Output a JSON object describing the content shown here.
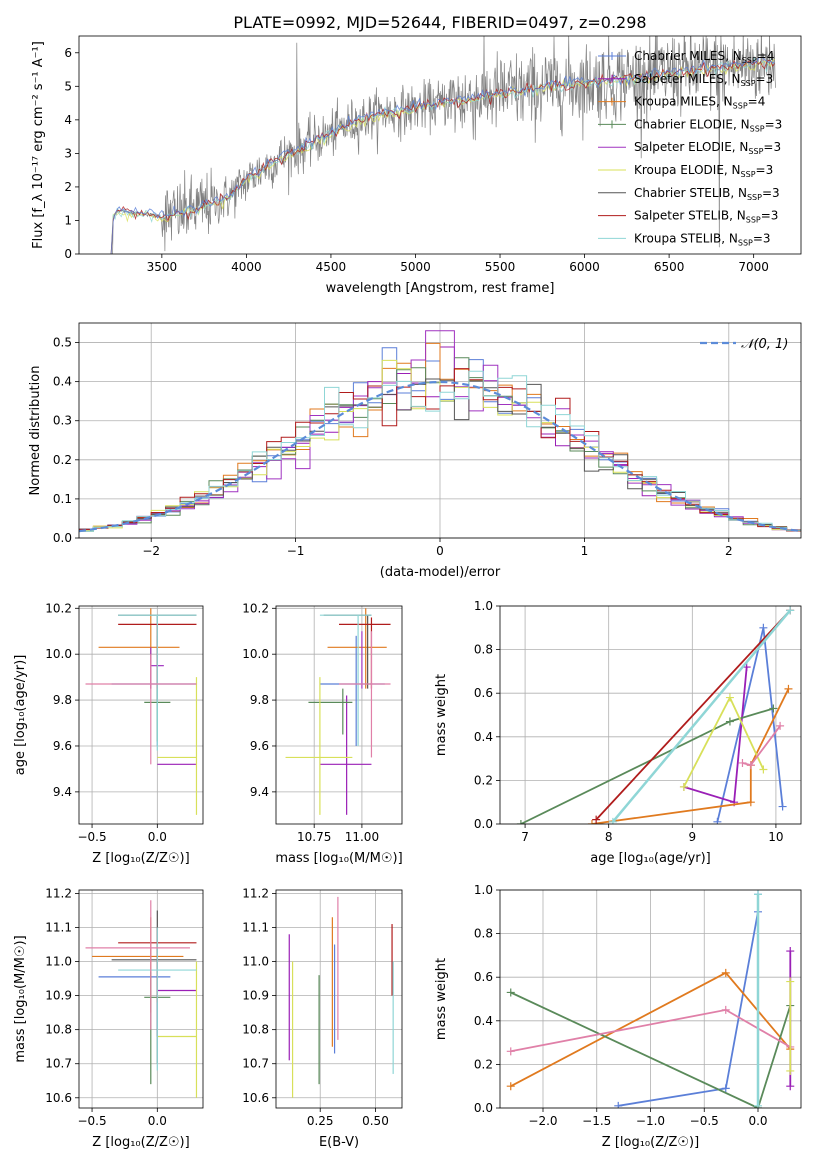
{
  "figure_title": "PLATE=0992, MJD=52644, FIBERID=0497, z=0.298",
  "colors": {
    "chabrier_miles": "#5b7fd8",
    "salpeter_miles": "#9a1fb6",
    "kroupa_miles": "#e07a1f",
    "chabrier_elodie": "#5a8a5a",
    "salpeter_elodie": "#a033c0",
    "kroupa_elodie": "#d8e05a",
    "chabrier_stelib": "#555555",
    "salpeter_stelib": "#b01c1c",
    "kroupa_stelib": "#8fd6d6",
    "data": "#808080",
    "gaussian": "#5b8bd8"
  },
  "chart_data": [
    {
      "id": "spectrum",
      "type": "line",
      "xlabel": "wavelength [Angstrom, rest frame]",
      "ylabel": "Flux [f_λ 10⁻¹⁷ erg cm⁻² s⁻¹ A⁻¹]",
      "xlim": [
        3010,
        7280
      ],
      "ylim": [
        0,
        6.5
      ],
      "xticks": [
        3500,
        4000,
        4500,
        5000,
        5500,
        6000,
        6500,
        7000
      ],
      "yticks": [
        0,
        1,
        2,
        3,
        4,
        5,
        6
      ],
      "grid": false,
      "legend": "top-right",
      "legend_entries": [
        {
          "label": "Chabrier MILES, N_SSP=4",
          "color_key": "chabrier_miles"
        },
        {
          "label": "Salpeter MILES, N_SSP=3",
          "color_key": "salpeter_miles"
        },
        {
          "label": "Kroupa MILES, N_SSP=4",
          "color_key": "kroupa_miles"
        },
        {
          "label": "Chabrier ELODIE, N_SSP=3",
          "color_key": "chabrier_elodie"
        },
        {
          "label": "Salpeter ELODIE, N_SSP=3",
          "color_key": "salpeter_elodie"
        },
        {
          "label": "Kroupa ELODIE, N_SSP=3",
          "color_key": "kroupa_elodie"
        },
        {
          "label": "Chabrier STELIB, N_SSP=3",
          "color_key": "chabrier_stelib"
        },
        {
          "label": "Salpeter STELIB, N_SSP=3",
          "color_key": "salpeter_stelib"
        },
        {
          "label": "Kroupa STELIB, N_SSP=3",
          "color_key": "kroupa_stelib"
        }
      ],
      "continuum": {
        "x": [
          3200,
          3210,
          3240,
          3300,
          3400,
          3500,
          3600,
          3700,
          3800,
          3900,
          4000,
          4100,
          4200,
          4300,
          4400,
          4500,
          4600,
          4700,
          4800,
          4900,
          5000,
          5100,
          5200,
          5300,
          5400,
          5500,
          5600,
          5700,
          5800,
          5900,
          6000,
          6100,
          6200,
          6300,
          6400,
          6500,
          6600,
          6700,
          6800,
          6900,
          7000,
          7100
        ],
        "y": [
          0,
          1.1,
          1.3,
          1.25,
          1.2,
          1.1,
          1.2,
          1.35,
          1.5,
          1.7,
          2.2,
          2.55,
          2.85,
          3.1,
          3.35,
          3.6,
          3.85,
          4.05,
          4.2,
          4.25,
          4.35,
          4.45,
          4.55,
          4.6,
          4.7,
          4.8,
          4.85,
          4.9,
          5.0,
          5.05,
          5.1,
          5.15,
          5.2,
          5.25,
          5.3,
          5.4,
          5.45,
          5.5,
          5.55,
          5.6,
          5.65,
          5.7
        ]
      }
    },
    {
      "id": "residuals",
      "type": "step",
      "xlabel": "(data-model)/error",
      "ylabel": "Normed distribution",
      "xlim": [
        -2.5,
        2.5
      ],
      "ylim": [
        0,
        0.55
      ],
      "xticks": [
        -2,
        -1,
        0,
        1,
        2
      ],
      "xticklabels": [
        "−2",
        "−1",
        "0",
        "1",
        "2"
      ],
      "yticks": [
        0.0,
        0.1,
        0.2,
        0.3,
        0.4,
        0.5
      ],
      "grid": true,
      "legend": "top-right",
      "legend_label": "𝒩(0, 1)",
      "bin_width": 0.1
    },
    {
      "id": "age_vs_Z",
      "type": "errorbar",
      "xlabel": "Z [log₁₀(Z/Z☉)]",
      "ylabel": "age  [log₁₀(age/yr)]",
      "xlim": [
        -0.6,
        0.35
      ],
      "ylim": [
        9.26,
        10.21
      ],
      "xticks": [
        -0.5,
        0.0
      ],
      "xticklabels": [
        "−0.5",
        "0.0"
      ],
      "yticks": [
        9.4,
        9.6,
        9.8,
        10.0,
        10.2
      ],
      "grid": true,
      "points": [
        {
          "c": "chabrier_miles",
          "x": 0.0,
          "xl": -0.35,
          "xh": 0.3,
          "y": 9.87,
          "yl": 9.6,
          "yh": 10.08
        },
        {
          "c": "salpeter_miles",
          "x": 0.0,
          "xl": 0.0,
          "xh": 0.3,
          "y": 9.52,
          "yl": 9.52,
          "yh": 9.52
        },
        {
          "c": "kroupa_miles",
          "x": -0.05,
          "xl": -0.45,
          "xh": 0.17,
          "y": 10.03,
          "yl": 9.85,
          "yh": 10.2
        },
        {
          "c": "chabrier_elodie",
          "x": 0.0,
          "xl": -0.1,
          "xh": 0.1,
          "y": 9.79,
          "yl": 9.62,
          "yh": 9.85
        },
        {
          "c": "salpeter_elodie",
          "x": -0.05,
          "xl": -0.05,
          "xh": 0.05,
          "y": 9.95,
          "yl": 9.85,
          "yh": 10.03
        },
        {
          "c": "kroupa_elodie",
          "x": 0.3,
          "xl": 0.0,
          "xh": 0.3,
          "y": 9.55,
          "yl": 9.3,
          "yh": 9.9
        },
        {
          "c": "chabrier_stelib",
          "x": 0.0,
          "xl": -0.3,
          "xh": 0.3,
          "y": 10.17,
          "yl": 9.8,
          "yh": 10.17
        },
        {
          "c": "salpeter_stelib",
          "x": 0.0,
          "xl": -0.3,
          "xh": 0.3,
          "y": 10.13,
          "yl": 9.85,
          "yh": 10.13
        },
        {
          "c": "kroupa_stelib",
          "x": 0.0,
          "xl": -0.3,
          "xh": 0.3,
          "y": 10.17,
          "yl": 9.58,
          "yh": 10.17
        },
        {
          "c": "pink",
          "x": -0.05,
          "xl": -0.55,
          "xh": 0.3,
          "y": 9.87,
          "yl": 9.52,
          "yh": 10.0
        }
      ]
    },
    {
      "id": "age_vs_mass",
      "type": "errorbar",
      "xlabel": "mass [log₁₀(M/M☉)]",
      "ylabel": "",
      "xlim": [
        10.55,
        11.21
      ],
      "ylim": [
        9.26,
        10.21
      ],
      "xticks": [
        10.75,
        11.0
      ],
      "xticklabels": [
        "10.75",
        "11.00"
      ],
      "yticks": [
        9.4,
        9.6,
        9.8,
        10.0,
        10.2
      ],
      "grid": true,
      "points": [
        {
          "c": "chabrier_miles",
          "x": 10.97,
          "xl": 10.78,
          "xh": 11.12,
          "y": 9.87,
          "yl": 9.6,
          "yh": 10.08
        },
        {
          "c": "salpeter_miles",
          "x": 10.92,
          "xl": 10.78,
          "xh": 11.05,
          "y": 9.52,
          "yl": 9.3,
          "yh": 9.82
        },
        {
          "c": "kroupa_miles",
          "x": 11.02,
          "xl": 10.82,
          "xh": 11.13,
          "y": 10.03,
          "yl": 9.85,
          "yh": 10.2
        },
        {
          "c": "chabrier_elodie",
          "x": 10.9,
          "xl": 10.72,
          "xh": 10.95,
          "y": 9.79,
          "yl": 9.65,
          "yh": 9.85
        },
        {
          "c": "salpeter_elodie",
          "x": 11.0,
          "xl": 11.0,
          "xh": 11.0,
          "y": 9.95,
          "yl": 9.85,
          "yh": 10.1
        },
        {
          "c": "kroupa_elodie",
          "x": 10.78,
          "xl": 10.6,
          "xh": 10.95,
          "y": 9.55,
          "yl": 9.3,
          "yh": 9.9
        },
        {
          "c": "chabrier_stelib",
          "x": 11.03,
          "xl": 10.8,
          "xh": 11.05,
          "y": 10.17,
          "yl": 9.85,
          "yh": 10.17
        },
        {
          "c": "salpeter_stelib",
          "x": 11.05,
          "xl": 10.88,
          "xh": 11.15,
          "y": 10.13,
          "yl": 9.85,
          "yh": 10.16
        },
        {
          "c": "kroupa_stelib",
          "x": 10.98,
          "xl": 10.78,
          "xh": 11.05,
          "y": 10.17,
          "yl": 9.6,
          "yh": 10.17
        },
        {
          "c": "pink",
          "x": 11.05,
          "xl": 10.88,
          "xh": 11.15,
          "y": 9.87,
          "yl": 9.55,
          "yh": 10.1
        }
      ]
    },
    {
      "id": "mass_weight_vs_age",
      "type": "line",
      "xlabel": "age  [log₁₀(age/yr)]",
      "ylabel": "mass weight",
      "xlim": [
        6.7,
        10.3
      ],
      "ylim": [
        0,
        1.0
      ],
      "xticks": [
        7,
        8,
        9,
        10
      ],
      "yticks": [
        0.0,
        0.2,
        0.4,
        0.6,
        0.8,
        1.0
      ],
      "grid": true,
      "series": [
        {
          "c": "chabrier_miles",
          "x": [
            9.3,
            9.85,
            10.08
          ],
          "y": [
            0.01,
            0.9,
            0.08
          ]
        },
        {
          "c": "salpeter_miles",
          "x": [
            8.9,
            9.5,
            9.65
          ],
          "y": [
            0.17,
            0.1,
            0.72
          ]
        },
        {
          "c": "kroupa_miles",
          "x": [
            7.8,
            9.7,
            9.7,
            10.15
          ],
          "y": [
            0.0,
            0.1,
            0.27,
            0.62
          ]
        },
        {
          "c": "chabrier_elodie",
          "x": [
            6.95,
            9.45,
            9.97
          ],
          "y": [
            0.0,
            0.47,
            0.53
          ]
        },
        {
          "c": "kroupa_elodie",
          "x": [
            8.9,
            9.45,
            9.85
          ],
          "y": [
            0.17,
            0.58,
            0.25
          ]
        },
        {
          "c": "pink",
          "x": [
            9.6,
            9.7,
            10.05
          ],
          "y": [
            0.28,
            0.27,
            0.45
          ]
        },
        {
          "c": "salpeter_stelib",
          "x": [
            7.85,
            10.17
          ],
          "y": [
            0.02,
            0.98
          ]
        },
        {
          "c": "kroupa_stelib",
          "x": [
            8.05,
            10.17
          ],
          "y": [
            0.01,
            0.98
          ]
        }
      ]
    },
    {
      "id": "mass_vs_Z",
      "type": "errorbar",
      "xlabel": "Z [log₁₀(Z/Z☉)]",
      "ylabel": "mass [log₁₀(M/M☉)]",
      "xlim": [
        -0.6,
        0.35
      ],
      "ylim": [
        10.57,
        11.21
      ],
      "xticks": [
        -0.5,
        0.0
      ],
      "xticklabels": [
        "−0.5",
        "0.0"
      ],
      "yticks": [
        10.6,
        10.7,
        10.8,
        10.9,
        11.0,
        11.1,
        11.2
      ],
      "grid": true,
      "points": [
        {
          "c": "chabrier_miles",
          "x": 0.0,
          "xl": -0.45,
          "xh": 0.1,
          "y": 10.955,
          "yl": 10.78,
          "yh": 11.1
        },
        {
          "c": "salpeter_miles",
          "x": 0.0,
          "xl": 0.0,
          "xh": 0.3,
          "y": 10.915,
          "yl": 10.78,
          "yh": 10.96
        },
        {
          "c": "kroupa_miles",
          "x": -0.05,
          "xl": -0.5,
          "xh": 0.2,
          "y": 11.015,
          "yl": 10.85,
          "yh": 11.13
        },
        {
          "c": "chabrier_elodie",
          "x": -0.05,
          "xl": -0.1,
          "xh": 0.1,
          "y": 10.895,
          "yl": 10.64,
          "yh": 10.97
        },
        {
          "c": "kroupa_elodie",
          "x": 0.3,
          "xl": 0.0,
          "xh": 0.3,
          "y": 10.78,
          "yl": 10.6,
          "yh": 11.0
        },
        {
          "c": "chabrier_stelib",
          "x": 0.0,
          "xl": -0.35,
          "xh": 0.3,
          "y": 11.005,
          "yl": 10.7,
          "yh": 11.15
        },
        {
          "c": "salpeter_stelib",
          "x": 0.0,
          "xl": -0.3,
          "xh": 0.3,
          "y": 11.055,
          "yl": 10.88,
          "yh": 11.1
        },
        {
          "c": "kroupa_stelib",
          "x": 0.0,
          "xl": -0.3,
          "xh": 0.3,
          "y": 10.975,
          "yl": 10.68,
          "yh": 11.1
        },
        {
          "c": "pink",
          "x": -0.05,
          "xl": -0.55,
          "xh": 0.25,
          "y": 11.04,
          "yl": 10.8,
          "yh": 11.18
        }
      ]
    },
    {
      "id": "mass_vs_ebv",
      "type": "errorbar",
      "xlabel": "E(B-V)",
      "ylabel": "",
      "xlim": [
        0.05,
        0.62
      ],
      "ylim": [
        10.57,
        11.21
      ],
      "xticks": [
        0.25,
        0.5
      ],
      "xticklabels": [
        "0.25",
        "0.50"
      ],
      "yticks": [
        10.6,
        10.7,
        10.8,
        10.9,
        11.0,
        11.1,
        11.2
      ],
      "grid": true,
      "points": [
        {
          "c": "salpeter_miles",
          "x": 0.11,
          "xl": 0.11,
          "xh": 0.11,
          "y": 10.89,
          "yl": 10.71,
          "yh": 11.08
        },
        {
          "c": "kroupa_elodie",
          "x": 0.125,
          "xl": 0.125,
          "xh": 0.125,
          "y": 10.8,
          "yl": 10.6,
          "yh": 11.0
        },
        {
          "c": "chabrier_elodie",
          "x": 0.245,
          "xl": 0.245,
          "xh": 0.245,
          "y": 10.8,
          "yl": 10.64,
          "yh": 10.96
        },
        {
          "c": "kroupa_miles",
          "x": 0.305,
          "xl": 0.305,
          "xh": 0.305,
          "y": 10.95,
          "yl": 10.75,
          "yh": 11.13
        },
        {
          "c": "chabrier_miles",
          "x": 0.315,
          "xl": 0.315,
          "xh": 0.315,
          "y": 10.88,
          "yl": 10.73,
          "yh": 11.05
        },
        {
          "c": "pink",
          "x": 0.33,
          "xl": 0.33,
          "xh": 0.33,
          "y": 10.99,
          "yl": 10.77,
          "yh": 11.19
        },
        {
          "c": "salpeter_stelib",
          "x": 0.575,
          "xl": 0.575,
          "xh": 0.575,
          "y": 11.0,
          "yl": 10.9,
          "yh": 11.11
        },
        {
          "c": "kroupa_stelib",
          "x": 0.58,
          "xl": 0.58,
          "xh": 0.58,
          "y": 10.85,
          "yl": 10.67,
          "yh": 11.0
        }
      ]
    },
    {
      "id": "mass_weight_vs_Z",
      "type": "line",
      "xlabel": "Z [log₁₀(Z/Z☉)]",
      "ylabel": "mass weight",
      "xlim": [
        -2.4,
        0.4
      ],
      "ylim": [
        0,
        1.0
      ],
      "xticks": [
        -2.0,
        -1.5,
        -1.0,
        -0.5,
        0.0
      ],
      "xticklabels": [
        "−2.0",
        "−1.5",
        "−1.0",
        "−0.5",
        "0.0"
      ],
      "yticks": [
        0.0,
        0.2,
        0.4,
        0.6,
        0.8,
        1.0
      ],
      "grid": true,
      "series": [
        {
          "c": "chabrier_miles",
          "x": [
            -1.3,
            -0.3,
            0.0,
            0.0
          ],
          "y": [
            0.01,
            0.09,
            0.9,
            0.98
          ]
        },
        {
          "c": "kroupa_miles",
          "x": [
            -2.3,
            -0.3,
            0.3
          ],
          "y": [
            0.1,
            0.62,
            0.27
          ]
        },
        {
          "c": "chabrier_elodie",
          "x": [
            -2.3,
            0.0,
            0.3
          ],
          "y": [
            0.53,
            0.0,
            0.47
          ]
        },
        {
          "c": "pink",
          "x": [
            -2.3,
            -0.3,
            0.3
          ],
          "y": [
            0.26,
            0.45,
            0.28
          ]
        },
        {
          "c": "kroupa_stelib",
          "x": [
            0.0,
            0.0
          ],
          "y": [
            0.01,
            0.98
          ]
        },
        {
          "c": "salpeter_miles",
          "x": [
            0.3,
            0.3
          ],
          "y": [
            0.1,
            0.72
          ]
        },
        {
          "c": "kroupa_elodie",
          "x": [
            0.3,
            0.3
          ],
          "y": [
            0.17,
            0.58
          ]
        }
      ]
    }
  ]
}
